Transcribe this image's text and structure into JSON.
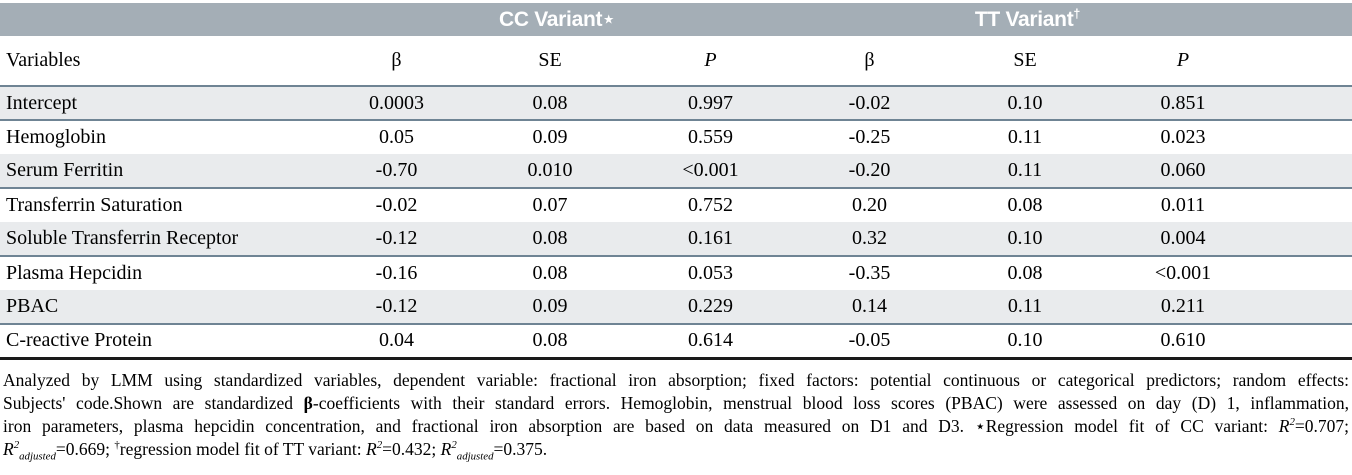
{
  "colors": {
    "band": "#a4aeb6",
    "stripe": "#e9ebed",
    "rule": "#6f8494",
    "bottom_border": "#1a1a1a",
    "band_text": "#ffffff",
    "text": "#000000"
  },
  "table": {
    "group_headers": {
      "cc": [
        {
          "text": "CC Variant"
        },
        {
          "text": "⋆"
        }
      ],
      "tt": [
        {
          "text": "TT Variant"
        },
        {
          "text": "†",
          "sup": true
        }
      ]
    },
    "columns": [
      {
        "label": "Variables",
        "italic": false
      },
      {
        "label": "β",
        "italic": false
      },
      {
        "label": "SE",
        "italic": false
      },
      {
        "label": "P",
        "italic": true
      },
      {
        "label": "β",
        "italic": false
      },
      {
        "label": "SE",
        "italic": false
      },
      {
        "label": "P",
        "italic": true
      }
    ],
    "rows": [
      {
        "variable": "Intercept",
        "values": [
          "0.0003",
          "0.08",
          "0.997",
          "-0.02",
          "0.10",
          "0.851"
        ]
      },
      {
        "variable": "Hemoglobin",
        "values": [
          "0.05",
          "0.09",
          "0.559",
          "-0.25",
          "0.11",
          "0.023"
        ]
      },
      {
        "variable": "Serum Ferritin",
        "values": [
          "-0.70",
          "0.010",
          "<0.001",
          "-0.20",
          "0.11",
          "0.060"
        ]
      },
      {
        "variable": "Transferrin Saturation",
        "values": [
          "-0.02",
          "0.07",
          "0.752",
          "0.20",
          "0.08",
          "0.011"
        ]
      },
      {
        "variable": "Soluble Transferrin Receptor",
        "values": [
          "-0.12",
          "0.08",
          "0.161",
          "0.32",
          "0.10",
          "0.004"
        ]
      },
      {
        "variable": "Plasma Hepcidin",
        "values": [
          "-0.16",
          "0.08",
          "0.053",
          "-0.35",
          "0.08",
          "<0.001"
        ]
      },
      {
        "variable": "PBAC",
        "values": [
          "-0.12",
          "0.09",
          "0.229",
          "0.14",
          "0.11",
          "0.211"
        ]
      },
      {
        "variable": "C-reactive Protein",
        "values": [
          "0.04",
          "0.08",
          "0.614",
          "-0.05",
          "0.10",
          "0.610"
        ]
      }
    ]
  },
  "footnote": {
    "lines": [
      [
        {
          "text": "Analyzed by LMM using standardized variables, dependent variable: fractional iron absorption; fixed factors: potential continuous or categorical predictors; random effects:"
        }
      ],
      [
        {
          "text": "Subjects' code.Shown are standardized "
        },
        {
          "text": "β",
          "bold": true
        },
        {
          "text": "-coefficients with their standard errors. Hemoglobin, menstrual blood loss scores (PBAC) were assessed on day (D) 1, inflammation,"
        }
      ],
      [
        {
          "text": "iron parameters, plasma hepcidin concentration, and fractional iron absorption are based on data measured on D1 and D3. ⋆Regression model fit of CC variant: "
        },
        {
          "text": "R",
          "italic": true
        },
        {
          "text": "2",
          "sup": true,
          "italic": true
        },
        {
          "text": "=0.707;"
        }
      ],
      [
        {
          "text": "R",
          "italic": true
        },
        {
          "text": "2",
          "sup": true,
          "italic": true
        },
        {
          "text": "adjusted",
          "sub": true,
          "italic": true
        },
        {
          "text": "=0.669; "
        },
        {
          "text": "†",
          "sup": true
        },
        {
          "text": "regression model fit of TT variant: "
        },
        {
          "text": "R",
          "italic": true
        },
        {
          "text": "2",
          "sup": true,
          "italic": true
        },
        {
          "text": "=0.432; "
        },
        {
          "text": "R",
          "italic": true
        },
        {
          "text": "2",
          "sup": true,
          "italic": true
        },
        {
          "text": "adjusted",
          "sub": true,
          "italic": true
        },
        {
          "text": "=0.375."
        }
      ]
    ]
  }
}
